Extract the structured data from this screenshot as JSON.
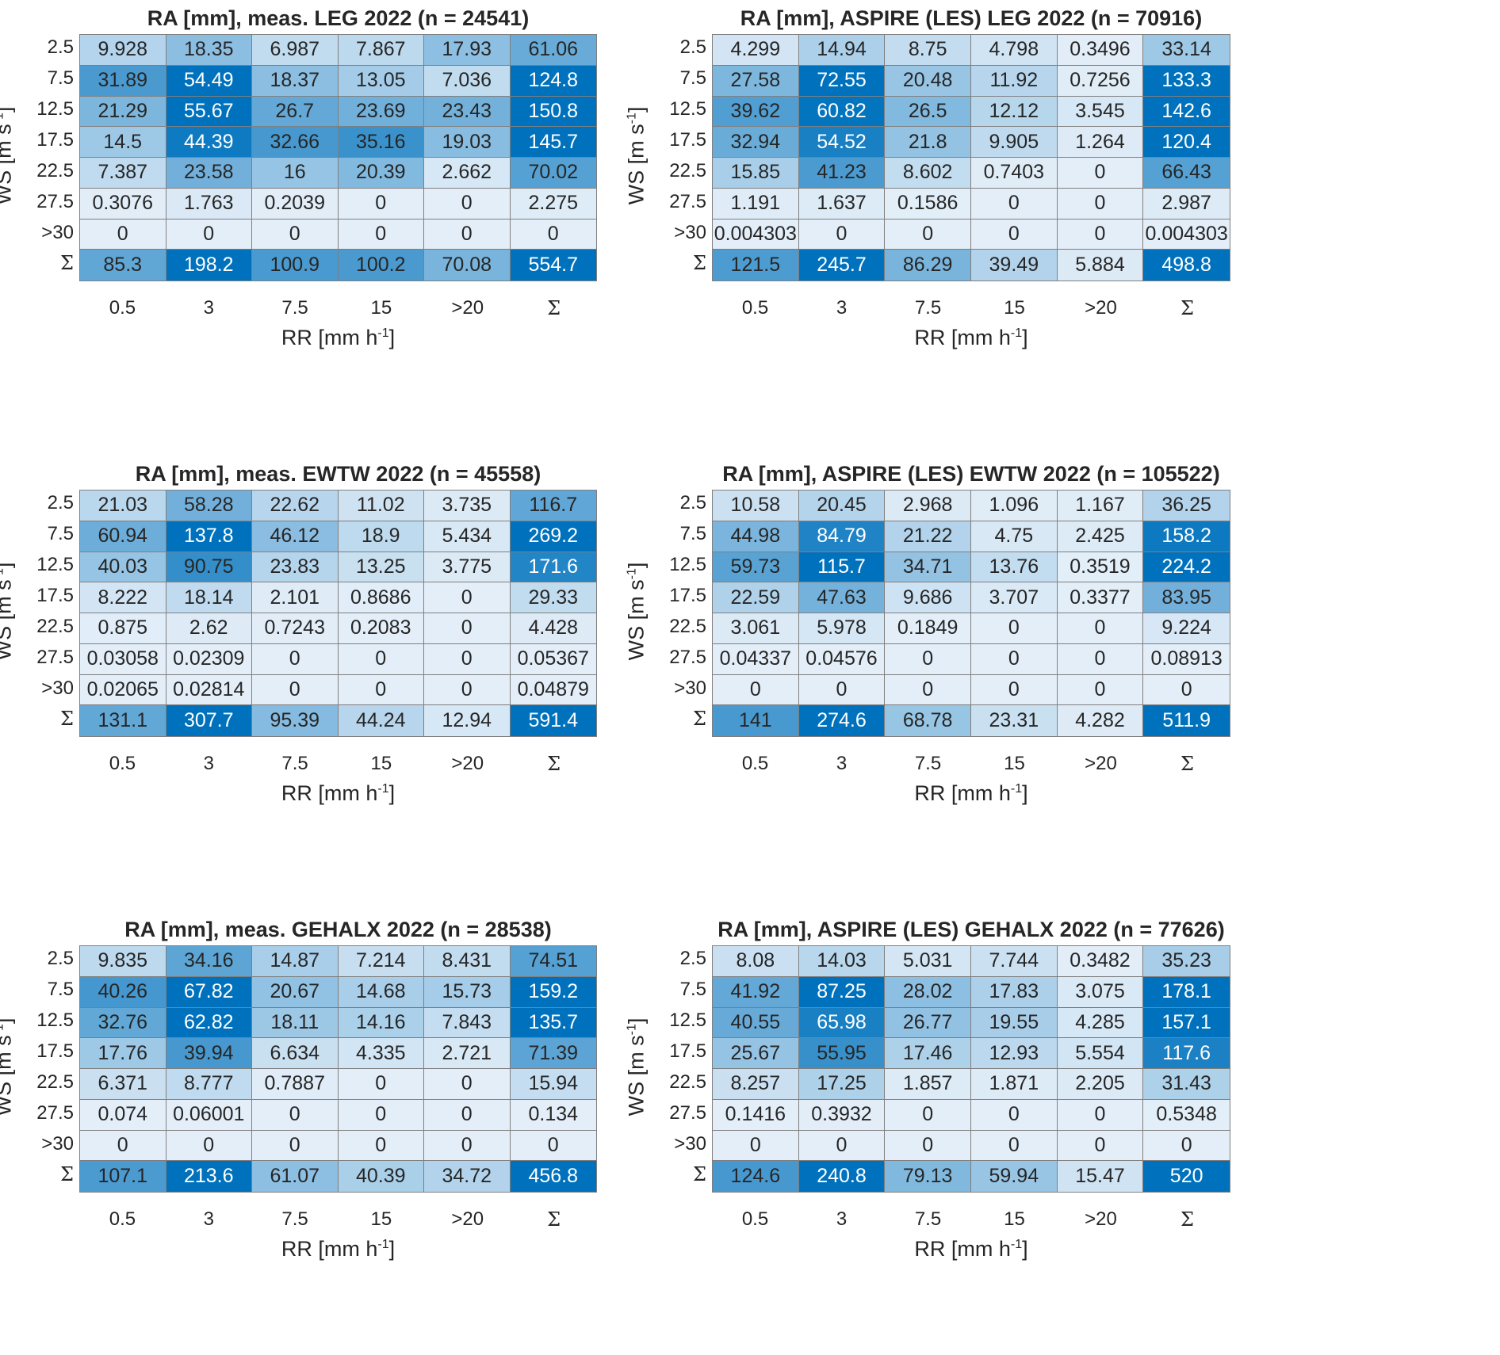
{
  "chart_data": [
    {
      "type": "heatmap",
      "title": "RA [mm], meas. LEG 2022 (n = 24541)",
      "xlabel": "RR [mm h^-1]",
      "ylabel": "WS [m s^-1]",
      "x_categories": [
        "0.5",
        "3",
        "7.5",
        "15",
        ">20",
        "Σ"
      ],
      "y_categories": [
        "2.5",
        "7.5",
        "12.5",
        "17.5",
        "22.5",
        "27.5",
        ">30",
        "Σ"
      ],
      "values": [
        [
          "9.928",
          "18.35",
          "6.987",
          "7.867",
          "17.93",
          "61.06"
        ],
        [
          "31.89",
          "54.49",
          "18.37",
          "13.05",
          "7.036",
          "124.8"
        ],
        [
          "21.29",
          "55.67",
          "26.7",
          "23.69",
          "23.43",
          "150.8"
        ],
        [
          "14.5",
          "44.39",
          "32.66",
          "35.16",
          "19.03",
          "145.7"
        ],
        [
          "7.387",
          "23.58",
          "16",
          "20.39",
          "2.662",
          "70.02"
        ],
        [
          "0.3076",
          "1.763",
          "0.2039",
          "0",
          "0",
          "2.275"
        ],
        [
          "0",
          "0",
          "0",
          "0",
          "0",
          "0"
        ],
        [
          "85.3",
          "198.2",
          "100.9",
          "100.2",
          "70.08",
          "554.7"
        ]
      ]
    },
    {
      "type": "heatmap",
      "title": "RA [mm], ASPIRE (LES) LEG 2022 (n = 70916)",
      "xlabel": "RR [mm h^-1]",
      "ylabel": "WS [m s^-1]",
      "x_categories": [
        "0.5",
        "3",
        "7.5",
        "15",
        ">20",
        "Σ"
      ],
      "y_categories": [
        "2.5",
        "7.5",
        "12.5",
        "17.5",
        "22.5",
        "27.5",
        ">30",
        "Σ"
      ],
      "values": [
        [
          "4.299",
          "14.94",
          "8.75",
          "4.798",
          "0.3496",
          "33.14"
        ],
        [
          "27.58",
          "72.55",
          "20.48",
          "11.92",
          "0.7256",
          "133.3"
        ],
        [
          "39.62",
          "60.82",
          "26.5",
          "12.12",
          "3.545",
          "142.6"
        ],
        [
          "32.94",
          "54.52",
          "21.8",
          "9.905",
          "1.264",
          "120.4"
        ],
        [
          "15.85",
          "41.23",
          "8.602",
          "0.7403",
          "0",
          "66.43"
        ],
        [
          "1.191",
          "1.637",
          "0.1586",
          "0",
          "0",
          "2.987"
        ],
        [
          "0.004303",
          "0",
          "0",
          "0",
          "0",
          "0.004303"
        ],
        [
          "121.5",
          "245.7",
          "86.29",
          "39.49",
          "5.884",
          "498.8"
        ]
      ]
    },
    {
      "type": "heatmap",
      "title": "RA [mm], meas. EWTW 2022 (n = 45558)",
      "xlabel": "RR [mm h^-1]",
      "ylabel": "WS [m s^-1]",
      "x_categories": [
        "0.5",
        "3",
        "7.5",
        "15",
        ">20",
        "Σ"
      ],
      "y_categories": [
        "2.5",
        "7.5",
        "12.5",
        "17.5",
        "22.5",
        "27.5",
        ">30",
        "Σ"
      ],
      "values": [
        [
          "21.03",
          "58.28",
          "22.62",
          "11.02",
          "3.735",
          "116.7"
        ],
        [
          "60.94",
          "137.8",
          "46.12",
          "18.9",
          "5.434",
          "269.2"
        ],
        [
          "40.03",
          "90.75",
          "23.83",
          "13.25",
          "3.775",
          "171.6"
        ],
        [
          "8.222",
          "18.14",
          "2.101",
          "0.8686",
          "0",
          "29.33"
        ],
        [
          "0.875",
          "2.62",
          "0.7243",
          "0.2083",
          "0",
          "4.428"
        ],
        [
          "0.03058",
          "0.02309",
          "0",
          "0",
          "0",
          "0.05367"
        ],
        [
          "0.02065",
          "0.02814",
          "0",
          "0",
          "0",
          "0.04879"
        ],
        [
          "131.1",
          "307.7",
          "95.39",
          "44.24",
          "12.94",
          "591.4"
        ]
      ]
    },
    {
      "type": "heatmap",
      "title": "RA [mm], ASPIRE (LES) EWTW 2022 (n = 105522)",
      "xlabel": "RR [mm h^-1]",
      "ylabel": "WS [m s^-1]",
      "x_categories": [
        "0.5",
        "3",
        "7.5",
        "15",
        ">20",
        "Σ"
      ],
      "y_categories": [
        "2.5",
        "7.5",
        "12.5",
        "17.5",
        "22.5",
        "27.5",
        ">30",
        "Σ"
      ],
      "values": [
        [
          "10.58",
          "20.45",
          "2.968",
          "1.096",
          "1.167",
          "36.25"
        ],
        [
          "44.98",
          "84.79",
          "21.22",
          "4.75",
          "2.425",
          "158.2"
        ],
        [
          "59.73",
          "115.7",
          "34.71",
          "13.76",
          "0.3519",
          "224.2"
        ],
        [
          "22.59",
          "47.63",
          "9.686",
          "3.707",
          "0.3377",
          "83.95"
        ],
        [
          "3.061",
          "5.978",
          "0.1849",
          "0",
          "0",
          "9.224"
        ],
        [
          "0.04337",
          "0.04576",
          "0",
          "0",
          "0",
          "0.08913"
        ],
        [
          "0",
          "0",
          "0",
          "0",
          "0",
          "0"
        ],
        [
          "141",
          "274.6",
          "68.78",
          "23.31",
          "4.282",
          "511.9"
        ]
      ]
    },
    {
      "type": "heatmap",
      "title": "RA [mm], meas. GEHALX 2022 (n = 28538)",
      "xlabel": "RR [mm h^-1]",
      "ylabel": "WS [m s^-1]",
      "x_categories": [
        "0.5",
        "3",
        "7.5",
        "15",
        ">20",
        "Σ"
      ],
      "y_categories": [
        "2.5",
        "7.5",
        "12.5",
        "17.5",
        "22.5",
        "27.5",
        ">30",
        "Σ"
      ],
      "values": [
        [
          "9.835",
          "34.16",
          "14.87",
          "7.214",
          "8.431",
          "74.51"
        ],
        [
          "40.26",
          "67.82",
          "20.67",
          "14.68",
          "15.73",
          "159.2"
        ],
        [
          "32.76",
          "62.82",
          "18.11",
          "14.16",
          "7.843",
          "135.7"
        ],
        [
          "17.76",
          "39.94",
          "6.634",
          "4.335",
          "2.721",
          "71.39"
        ],
        [
          "6.371",
          "8.777",
          "0.7887",
          "0",
          "0",
          "15.94"
        ],
        [
          "0.074",
          "0.06001",
          "0",
          "0",
          "0",
          "0.134"
        ],
        [
          "0",
          "0",
          "0",
          "0",
          "0",
          "0"
        ],
        [
          "107.1",
          "213.6",
          "61.07",
          "40.39",
          "34.72",
          "456.8"
        ]
      ]
    },
    {
      "type": "heatmap",
      "title": "RA [mm], ASPIRE (LES) GEHALX 2022 (n = 77626)",
      "xlabel": "RR [mm h^-1]",
      "ylabel": "WS [m s^-1]",
      "x_categories": [
        "0.5",
        "3",
        "7.5",
        "15",
        ">20",
        "Σ"
      ],
      "y_categories": [
        "2.5",
        "7.5",
        "12.5",
        "17.5",
        "22.5",
        "27.5",
        ">30",
        "Σ"
      ],
      "values": [
        [
          "8.08",
          "14.03",
          "5.031",
          "7.744",
          "0.3482",
          "35.23"
        ],
        [
          "41.92",
          "87.25",
          "28.02",
          "17.83",
          "3.075",
          "178.1"
        ],
        [
          "40.55",
          "65.98",
          "26.77",
          "19.55",
          "4.285",
          "157.1"
        ],
        [
          "25.67",
          "55.95",
          "17.46",
          "12.93",
          "5.554",
          "117.6"
        ],
        [
          "8.257",
          "17.25",
          "1.857",
          "1.871",
          "2.205",
          "31.43"
        ],
        [
          "0.1416",
          "0.3932",
          "0",
          "0",
          "0",
          "0.5348"
        ],
        [
          "0",
          "0",
          "0",
          "0",
          "0",
          "0"
        ],
        [
          "124.6",
          "240.8",
          "79.13",
          "59.94",
          "15.47",
          "520"
        ]
      ]
    }
  ],
  "colors": {
    "low": "#e3eef8",
    "high": "#0072bd",
    "text_dark": "#262626",
    "text_light": "#ffffff",
    "grid_line": "#7f7f7f"
  }
}
